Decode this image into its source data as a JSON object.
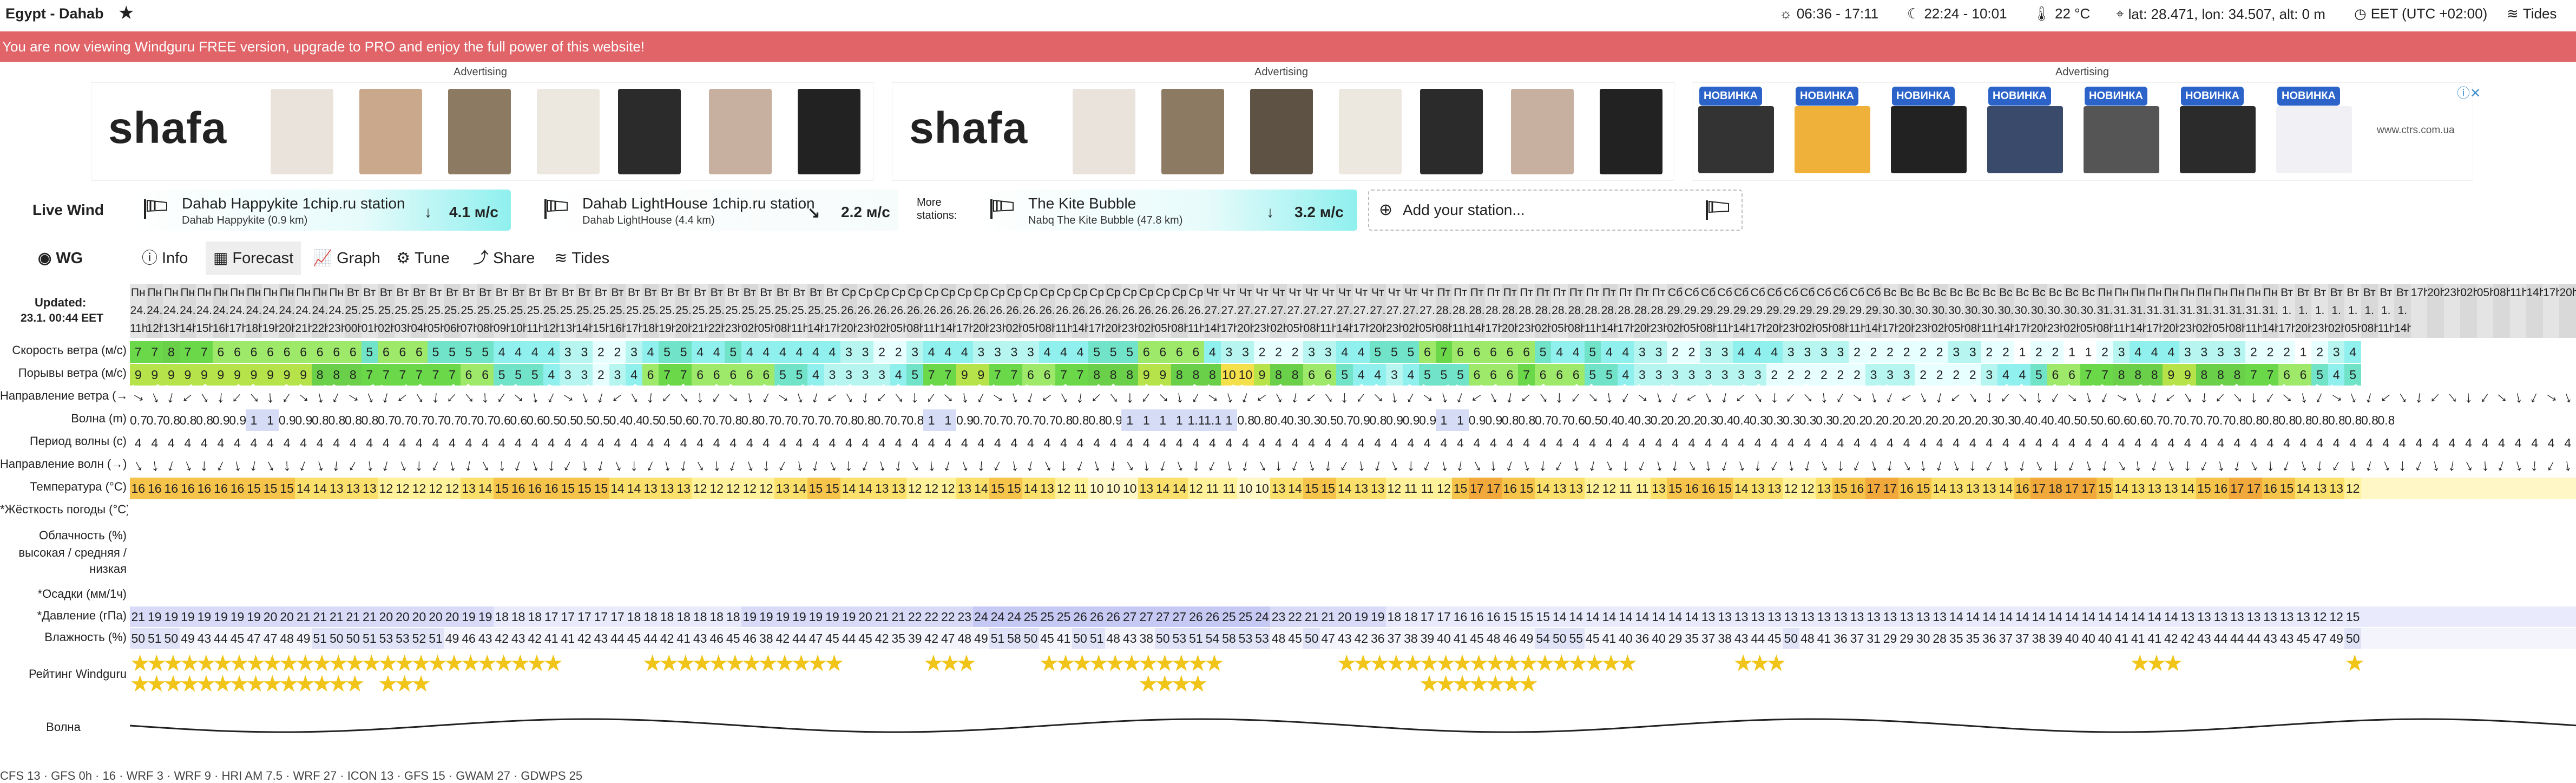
{
  "topbar": {
    "title": "Egypt - Dahab",
    "sun": "06:36 - 17:11",
    "moon": "22:24 - 10:01",
    "temp": "22 °C",
    "coords": "lat: 28.471, lon: 34.507, alt: 0 m",
    "timezone": "EET (UTC +02:00)",
    "tides": "Tides"
  },
  "banner": {
    "text": "You are now viewing Windguru FREE version, upgrade to PRO and enjoy the full power of this website!"
  },
  "ads": {
    "label": "Advertising",
    "brand": "shafa",
    "badge": "НОВИНКА",
    "site": "www.ctrs.com.ua"
  },
  "live": {
    "label": "Live Wind",
    "more": "More\nstations:",
    "add": "Add your station...",
    "stations": [
      {
        "name": "Dahab Happykite 1chip.ru station",
        "sub": "Dahab Happykite",
        "dist": "(0.9 km)",
        "speed": "4.1 м/с",
        "accent": "#8ff0ee"
      },
      {
        "name": "Dahab LightHouse 1chip.ru station",
        "sub": "Dahab LightHouse",
        "dist": "(4.4 km)",
        "speed": "2.2 м/с",
        "accent": "#ffffff"
      },
      {
        "name": "The Kite Bubble",
        "sub": "Nabq The Kite Bubble",
        "dist": "(47.8 km)",
        "speed": "3.2 м/с",
        "accent": "#8ff0ee"
      }
    ]
  },
  "tabs": {
    "wg": "WG",
    "info": "Info",
    "forecast": "Forecast",
    "graph": "Graph",
    "tune": "Tune",
    "share": "Share",
    "tides": "Tides"
  },
  "updated": {
    "label": "Updated:",
    "value": "23.1. 00:44 EET"
  },
  "rows": {
    "wind": "Скорость ветра (м/с)",
    "gust": "Порывы ветра (м/с)",
    "dir": "Направление ветра (→)",
    "wave": "Волна (m)",
    "period": "Период волны (с)",
    "wavedir": "Направление волн (→)",
    "temp": "Температура (°C)",
    "feel": "*Жёсткость погоды (°C)",
    "cloud": "Облачность (%)",
    "cloud2": "высокая / средняя /",
    "cloud3": "низкая",
    "precip": "*Осадки (мм/1ч)",
    "pressure": "*Давление (гПа)",
    "humidity": "Влажность (%)",
    "rating": "Рейтинг Windguru",
    "waveplot": "Волна"
  },
  "columns": {
    "days": [
      "Пн",
      "Пн",
      "Пн",
      "Пн",
      "Пн",
      "Пн",
      "Пн",
      "Пн",
      "Пн",
      "Пн",
      "Пн",
      "Пн",
      "Пн",
      "Вт",
      "Вт",
      "Вт",
      "Вт",
      "Вт",
      "Вт",
      "Вт",
      "Вт",
      "Вт",
      "Вт",
      "Вт",
      "Вт",
      "Вт",
      "Вт",
      "Вт",
      "Вт",
      "Вт",
      "Вт",
      "Вт",
      "Вт",
      "Вт",
      "Вт",
      "Вт",
      "Вт",
      "Вт",
      "Вт",
      "Вт",
      "Вт",
      "Вт",
      "Вт",
      "Ср",
      "Ср",
      "Ср",
      "Ср",
      "Ср",
      "Ср",
      "Ср",
      "Ср",
      "Ср",
      "Ср",
      "Ср",
      "Ср",
      "Ср",
      "Ср",
      "Ср",
      "Ср",
      "Ср",
      "Ср",
      "Ср",
      "Ср",
      "Ср",
      "Ср",
      "Чт",
      "Чт",
      "Чт",
      "Чт",
      "Чт",
      "Чт",
      "Чт",
      "Чт",
      "Чт",
      "Чт",
      "Чт",
      "Чт",
      "Чт",
      "Чт",
      "Пт",
      "Пт",
      "Пт",
      "Пт",
      "Пт",
      "Пт",
      "Пт",
      "Пт",
      "Пт",
      "Пт",
      "Пт",
      "Пт",
      "Пт",
      "Пт",
      "Сб",
      "Сб",
      "Сб",
      "Сб",
      "Сб",
      "Сб",
      "Сб",
      "Сб",
      "Сб",
      "Сб",
      "Сб",
      "Сб",
      "Сб",
      "Вс",
      "Вс",
      "Вс",
      "Вс",
      "Вс",
      "Вс",
      "Вс",
      "Вс",
      "Вс",
      "Вс",
      "Вс",
      "Вс",
      "Вс",
      "Пн",
      "Пн",
      "Пн",
      "Пн",
      "Пн",
      "Пн",
      "Пн",
      "Пн",
      "Пн",
      "Пн",
      "Пн",
      "Вт",
      "Вт",
      "Вт",
      "Вт",
      "Вт",
      "Вт",
      "Вт",
      "Вт"
    ],
    "dates": [
      "24.",
      "24.",
      "24.",
      "24.",
      "24.",
      "24.",
      "24.",
      "24.",
      "24.",
      "24.",
      "24.",
      "24.",
      "24.",
      "25.",
      "25.",
      "25.",
      "25.",
      "25.",
      "25.",
      "25.",
      "25.",
      "25.",
      "25.",
      "25.",
      "25.",
      "25.",
      "25.",
      "25.",
      "25.",
      "25.",
      "25.",
      "25.",
      "25.",
      "25.",
      "25.",
      "25.",
      "25.",
      "25.",
      "25.",
      "25.",
      "25.",
      "25.",
      "25.",
      "26.",
      "26.",
      "26.",
      "26.",
      "26.",
      "26.",
      "26.",
      "26.",
      "26.",
      "26.",
      "26.",
      "26.",
      "26.",
      "26.",
      "26.",
      "26.",
      "26.",
      "26.",
      "26.",
      "26.",
      "26.",
      "26.",
      "27.",
      "27.",
      "27.",
      "27.",
      "27.",
      "27.",
      "27.",
      "27.",
      "27.",
      "27.",
      "27.",
      "27.",
      "27.",
      "27.",
      "28.",
      "28.",
      "28.",
      "28.",
      "28.",
      "28.",
      "28.",
      "28.",
      "28.",
      "28.",
      "28.",
      "28.",
      "28.",
      "28.",
      "29.",
      "29.",
      "29.",
      "29.",
      "29.",
      "29.",
      "29.",
      "29.",
      "29.",
      "29.",
      "29.",
      "29.",
      "29.",
      "30.",
      "30.",
      "30.",
      "30.",
      "30.",
      "30.",
      "30.",
      "30.",
      "30.",
      "30.",
      "30.",
      "30.",
      "30.",
      "31.",
      "31.",
      "31.",
      "31.",
      "31.",
      "31.",
      "31.",
      "31.",
      "31.",
      "31.",
      "31.",
      "1.",
      "1.",
      "1.",
      "1.",
      "1.",
      "1.",
      "1.",
      "1."
    ],
    "hours": [
      "11h",
      "12h",
      "13h",
      "14h",
      "15h",
      "16h",
      "17h",
      "18h",
      "19h",
      "20h",
      "21h",
      "22h",
      "23h",
      "00h",
      "01h",
      "02h",
      "03h",
      "04h",
      "05h",
      "06h",
      "07h",
      "08h",
      "09h",
      "10h",
      "11h",
      "12h",
      "13h",
      "14h",
      "15h",
      "16h",
      "17h",
      "18h",
      "19h",
      "20h",
      "21h",
      "22h",
      "23h",
      "02h",
      "05h",
      "08h",
      "11h",
      "14h",
      "17h",
      "20h",
      "23h",
      "02h",
      "05h",
      "08h",
      "11h",
      "14h",
      "17h",
      "20h",
      "23h",
      "02h",
      "05h",
      "08h",
      "11h",
      "14h",
      "17h",
      "20h",
      "23h",
      "02h",
      "05h",
      "08h",
      "11h",
      "14h",
      "17h",
      "20h",
      "23h",
      "02h",
      "05h",
      "08h",
      "11h",
      "14h",
      "17h",
      "20h",
      "23h",
      "02h",
      "05h",
      "08h",
      "11h",
      "14h",
      "17h",
      "20h",
      "23h",
      "02h",
      "05h",
      "08h",
      "11h",
      "14h",
      "17h",
      "20h",
      "23h",
      "02h",
      "05h",
      "08h",
      "11h",
      "14h",
      "17h",
      "20h",
      "23h",
      "02h",
      "05h",
      "08h",
      "11h",
      "14h",
      "17h",
      "20h",
      "23h",
      "02h",
      "05h",
      "08h",
      "11h",
      "14h",
      "17h",
      "20h",
      "23h",
      "02h",
      "05h",
      "08h",
      "11h",
      "14h",
      "17h",
      "20h",
      "23h",
      "02h",
      "05h",
      "08h",
      "11h",
      "14h",
      "17h",
      "20h",
      "23h",
      "02h",
      "05h",
      "08h",
      "11h",
      "14h",
      "17h",
      "20h",
      "23h",
      "02h",
      "05h",
      "08h",
      "11h",
      "14h",
      "17h",
      "20h"
    ],
    "wind": [
      7,
      7,
      8,
      7,
      7,
      6,
      6,
      6,
      6,
      6,
      6,
      6,
      6,
      6,
      5,
      6,
      6,
      6,
      5,
      5,
      5,
      5,
      4,
      4,
      4,
      4,
      3,
      3,
      2,
      2,
      3,
      4,
      5,
      5,
      4,
      4,
      5,
      4,
      4,
      4,
      4,
      4,
      4,
      3,
      3,
      2,
      2,
      3,
      4,
      4,
      4,
      3,
      3,
      3,
      3,
      4,
      4,
      4,
      5,
      5,
      5,
      6,
      6,
      6,
      6,
      4,
      3,
      3,
      2,
      2,
      2,
      3,
      3,
      4,
      4,
      5,
      5,
      5,
      6,
      7,
      6,
      6,
      6,
      6,
      6,
      5,
      4,
      4,
      5,
      4,
      4,
      3,
      3,
      2,
      2,
      3,
      3,
      4,
      4,
      4,
      3,
      3,
      3,
      3,
      2,
      2,
      2,
      2,
      2,
      2,
      3,
      3,
      2,
      2,
      1,
      2,
      2,
      1,
      1,
      2,
      3,
      4,
      4,
      4,
      3,
      3,
      3,
      3,
      2,
      2,
      2,
      1,
      2,
      3,
      4
    ],
    "gust": [
      9,
      9,
      9,
      9,
      9,
      9,
      9,
      9,
      9,
      9,
      9,
      8,
      8,
      8,
      7,
      7,
      7,
      7,
      7,
      7,
      6,
      6,
      5,
      5,
      5,
      4,
      3,
      3,
      2,
      3,
      4,
      6,
      7,
      7,
      6,
      6,
      6,
      6,
      6,
      5,
      5,
      4,
      3,
      3,
      3,
      3,
      4,
      5,
      7,
      7,
      9,
      9,
      7,
      7,
      6,
      6,
      7,
      7,
      8,
      8,
      8,
      9,
      9,
      8,
      8,
      8,
      10,
      10,
      9,
      8,
      8,
      6,
      6,
      5,
      4,
      4,
      3,
      4,
      5,
      5,
      5,
      6,
      6,
      6,
      7,
      6,
      6,
      6,
      5,
      5,
      4,
      3,
      3,
      3,
      3,
      3,
      3,
      3,
      3,
      2,
      2,
      2,
      2,
      2,
      2,
      3,
      3,
      3,
      2,
      2,
      2,
      2,
      3,
      4,
      4,
      5,
      6,
      6,
      7,
      7,
      8,
      8,
      8,
      9,
      9,
      8,
      8,
      8,
      7,
      7,
      6,
      6,
      5,
      4,
      5
    ],
    "wave": [
      0.7,
      0.7,
      0.8,
      0.8,
      0.8,
      0.9,
      0.9,
      1,
      1,
      0.9,
      0.9,
      0.8,
      0.8,
      0.8,
      0.8,
      0.7,
      0.7,
      0.7,
      0.7,
      0.7,
      0.7,
      0.7,
      0.6,
      0.6,
      0.6,
      0.5,
      0.5,
      0.5,
      0.5,
      0.4,
      0.4,
      0.5,
      0.5,
      0.6,
      0.7,
      0.7,
      0.8,
      0.8,
      0.7,
      0.7,
      0.7,
      0.7,
      0.7,
      0.8,
      0.8,
      0.7,
      0.7,
      0.8,
      1,
      1,
      0.9,
      0.7,
      0.7,
      0.7,
      0.7,
      0.7,
      0.8,
      0.8,
      0.8,
      0.9,
      1,
      1,
      1,
      1,
      1.1,
      1.1,
      1,
      0.8,
      0.8,
      0.4,
      0.3,
      0.3,
      0.5,
      0.7,
      0.9,
      0.8,
      0.9,
      0.9,
      0.9,
      1,
      1,
      0.9,
      0.9,
      0.8,
      0.8,
      0.7,
      0.7,
      0.6,
      0.5,
      0.4,
      0.4,
      0.3,
      0.2,
      0.2,
      0.2,
      0.3,
      0.4,
      0.4,
      0.3,
      0.3,
      0.3,
      0.3,
      0.3,
      0.2,
      0.2,
      0.2,
      0.2,
      0.2,
      0.2,
      0.2,
      0.2,
      0.2,
      0.3,
      0.3,
      0.4,
      0.4,
      0.4,
      0.5,
      0.5,
      0.6,
      0.6,
      0.6,
      0.7,
      0.7,
      0.7,
      0.7,
      0.7,
      0.8,
      0.8,
      0.8,
      0.8,
      0.8,
      0.8,
      0.8,
      0.8,
      0.8,
      0.8
    ],
    "temp": [
      16,
      16,
      16,
      16,
      16,
      16,
      16,
      15,
      15,
      15,
      14,
      14,
      13,
      13,
      13,
      12,
      12,
      12,
      12,
      12,
      13,
      14,
      15,
      16,
      16,
      16,
      15,
      15,
      15,
      14,
      14,
      13,
      13,
      13,
      12,
      12,
      12,
      12,
      12,
      13,
      14,
      15,
      15,
      14,
      14,
      13,
      13,
      12,
      12,
      12,
      13,
      14,
      15,
      15,
      14,
      13,
      12,
      11,
      10,
      10,
      10,
      13,
      14,
      14,
      12,
      11,
      11,
      10,
      10,
      13,
      14,
      15,
      15,
      14,
      13,
      13,
      12,
      11,
      11,
      12,
      15,
      17,
      17,
      16,
      15,
      14,
      13,
      13,
      12,
      12,
      11,
      11,
      13,
      15,
      16,
      16,
      15,
      14,
      13,
      13,
      12,
      12,
      13,
      15,
      16,
      17,
      17,
      16,
      15,
      14,
      13,
      13,
      13,
      14,
      16,
      17,
      18,
      17,
      17,
      15,
      14,
      13,
      13,
      13,
      14,
      15,
      16,
      17,
      17,
      16,
      15,
      14,
      13,
      13,
      12
    ],
    "pressure": [
      21,
      19,
      19,
      19,
      19,
      19,
      19,
      19,
      20,
      20,
      21,
      21,
      21,
      21,
      21,
      20,
      20,
      20,
      20,
      20,
      19,
      19,
      18,
      18,
      18,
      17,
      17,
      17,
      17,
      17,
      18,
      18,
      18,
      18,
      18,
      18,
      18,
      19,
      19,
      19,
      19,
      19,
      19,
      19,
      20,
      21,
      21,
      22,
      22,
      22,
      23,
      24,
      24,
      24,
      25,
      25,
      25,
      26,
      26,
      26,
      27,
      27,
      27,
      27,
      26,
      26,
      25,
      25,
      24,
      23,
      22,
      21,
      21,
      20,
      19,
      19,
      18,
      18,
      17,
      17,
      16,
      16,
      16,
      15,
      15,
      15,
      14,
      14,
      14,
      14,
      14,
      14,
      14,
      14,
      14,
      13,
      13,
      13,
      13,
      13,
      13,
      13,
      13,
      13,
      13,
      13,
      13,
      13,
      13,
      13,
      14,
      14,
      14,
      14,
      14,
      14,
      14,
      14,
      14,
      14,
      14,
      14,
      14,
      14,
      13,
      13,
      13,
      13,
      13,
      13,
      13,
      13,
      12,
      12,
      15
    ],
    "humidity": [
      50,
      51,
      50,
      49,
      43,
      44,
      45,
      47,
      47,
      48,
      49,
      51,
      50,
      50,
      51,
      53,
      53,
      52,
      51,
      49,
      46,
      43,
      42,
      43,
      42,
      41,
      41,
      42,
      43,
      44,
      45,
      44,
      42,
      41,
      43,
      46,
      45,
      46,
      38,
      42,
      44,
      47,
      45,
      44,
      45,
      42,
      35,
      39,
      42,
      47,
      48,
      49,
      51,
      58,
      50,
      45,
      41,
      50,
      51,
      48,
      43,
      38,
      50,
      53,
      51,
      54,
      58,
      53,
      53,
      48,
      45,
      50,
      47,
      43,
      42,
      36,
      37,
      38,
      39,
      40,
      41,
      45,
      48,
      46,
      49,
      54,
      50,
      55,
      45,
      41,
      40,
      36,
      40,
      29,
      35,
      37,
      38,
      43,
      44,
      45,
      50,
      48,
      41,
      36,
      37,
      31,
      29,
      29,
      30,
      28,
      35,
      35,
      36,
      37,
      37,
      38,
      39,
      40,
      40,
      40,
      41,
      41,
      41,
      42,
      42,
      43,
      44,
      44,
      44,
      43,
      43,
      45,
      47,
      49,
      50
    ]
  },
  "footer": {
    "text": "CFS 13 · GFS 0h · 16 · WRF 3 · WRF 9 · HRI AM 7.5 · WRF 27 · ICON 13 · GFS 15 · GWAM 27 · GDWPS 25"
  }
}
